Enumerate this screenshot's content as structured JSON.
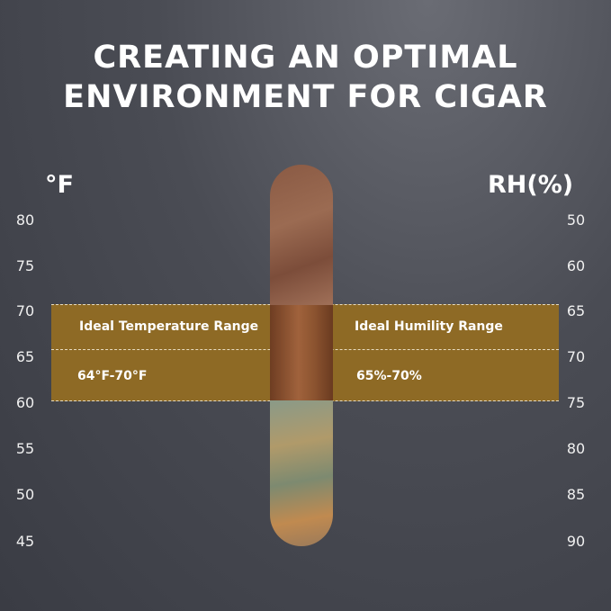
{
  "title": {
    "line1": "CREATING AN OPTIMAL",
    "line2": "ENVIRONMENT FOR CIGAR"
  },
  "left_axis": {
    "unit": "°F",
    "ticks": [
      "80",
      "75",
      "70",
      "65",
      "60",
      "55",
      "50",
      "45"
    ]
  },
  "right_axis": {
    "unit": "RH(%)",
    "ticks": [
      "50",
      "60",
      "65",
      "70",
      "75",
      "80",
      "85",
      "90"
    ]
  },
  "band": {
    "temp_label": "Ideal Temperature Range",
    "temp_value": "64°F-70°F",
    "humidity_label": "Ideal Humility Range",
    "humidity_value": "65%-70%",
    "color": "#8e6a25"
  }
}
